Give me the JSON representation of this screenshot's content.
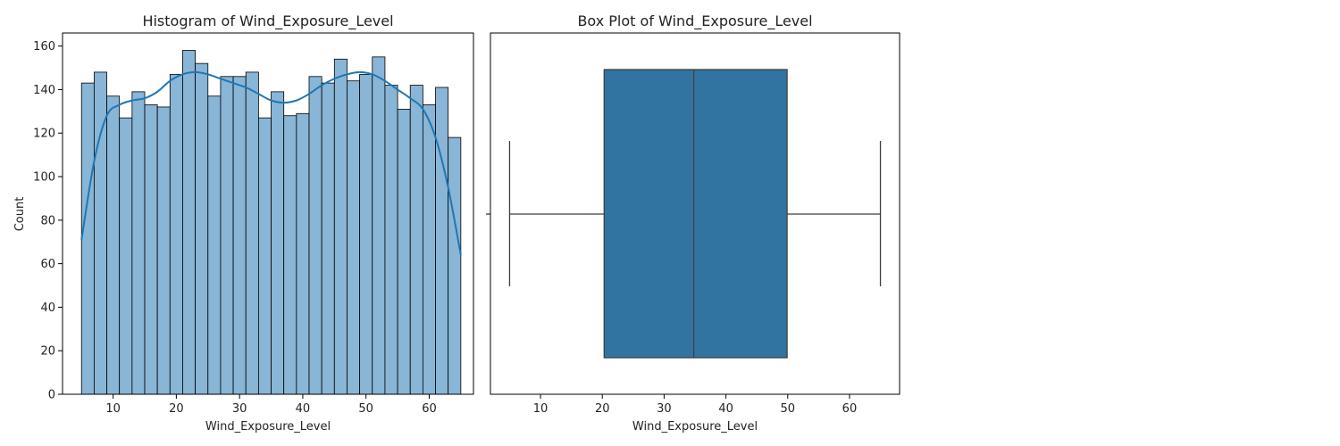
{
  "chart_data": [
    {
      "type": "bar",
      "title": "Histogram of Wind_Exposure_Level",
      "xlabel": "Wind_Exposure_Level",
      "ylabel": "Count",
      "xlim": [
        2,
        67
      ],
      "ylim": [
        0,
        166
      ],
      "x_ticks": [
        10,
        20,
        30,
        40,
        50,
        60
      ],
      "y_ticks": [
        0,
        20,
        40,
        60,
        80,
        100,
        120,
        140,
        160
      ],
      "bin_start": 5,
      "bin_end": 65,
      "values": [
        143,
        148,
        137,
        127,
        139,
        133,
        132,
        147,
        158,
        152,
        137,
        146,
        146,
        148,
        127,
        139,
        128,
        129,
        146,
        143,
        154,
        144,
        147,
        155,
        142,
        131,
        142,
        133,
        141,
        118
      ],
      "kde": {
        "x": [
          5,
          7,
          9,
          11,
          13,
          15,
          17,
          19,
          21,
          23,
          25,
          27,
          29,
          31,
          33,
          35,
          37,
          39,
          41,
          43,
          45,
          47,
          49,
          51,
          53,
          55,
          57,
          59,
          61,
          63,
          65
        ],
        "y": [
          71,
          107,
          128,
          133,
          135,
          136,
          139,
          144,
          147,
          148,
          147,
          145,
          143,
          141,
          138,
          135,
          134,
          135,
          138,
          142,
          145,
          147,
          148,
          147,
          144,
          140,
          136,
          131,
          118,
          95,
          64
        ]
      },
      "grid": false,
      "colors": {
        "bar_fill": "#89b5d6",
        "bar_edge": "#000000",
        "kde_line": "#1f77b4"
      }
    },
    {
      "type": "box",
      "title": "Box Plot of Wind_Exposure_Level",
      "xlabel": "Wind_Exposure_Level",
      "xlim": [
        1.9,
        68.1
      ],
      "x_ticks": [
        10,
        20,
        30,
        40,
        50,
        60
      ],
      "whisker_low": 5.0,
      "q1": 20.3,
      "median": 34.8,
      "q3": 49.9,
      "whisker_high": 65.0,
      "grid": false,
      "colors": {
        "box_fill": "#3274a1",
        "line": "#3f3f3f"
      }
    }
  ]
}
